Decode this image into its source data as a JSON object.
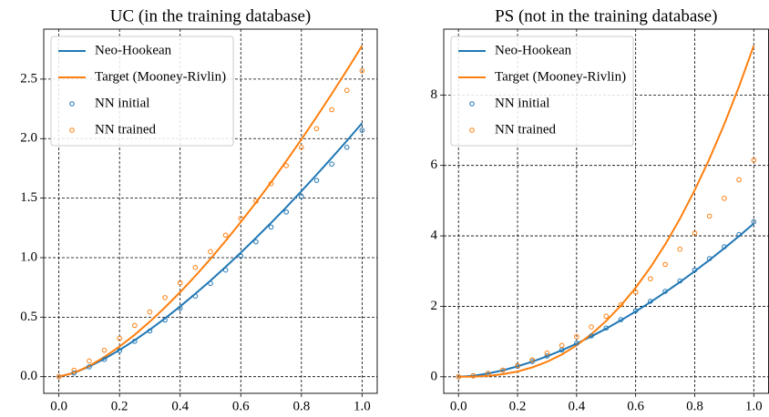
{
  "chart_data": [
    {
      "type": "line",
      "title": "UC (in the training database)",
      "x": [
        0,
        0.05,
        0.1,
        0.15,
        0.2,
        0.25,
        0.3,
        0.35,
        0.4,
        0.45,
        0.5,
        0.55,
        0.6,
        0.65,
        0.7,
        0.75,
        0.8,
        0.85,
        0.9,
        0.95,
        1
      ],
      "series": [
        {
          "name": "Neo-Hookean",
          "color": "#1f77b4",
          "style": "line",
          "values": [
            0,
            0.032,
            0.085,
            0.15,
            0.224,
            0.306,
            0.395,
            0.49,
            0.59,
            0.697,
            0.807,
            0.922,
            1.042,
            1.166,
            1.293,
            1.423,
            1.559,
            1.697,
            1.838,
            1.982,
            2.13
          ]
        },
        {
          "name": "Target (Mooney-Rivlin)",
          "color": "#ff7f0e",
          "style": "line",
          "values": [
            0,
            0.032,
            0.09,
            0.165,
            0.253,
            0.352,
            0.462,
            0.582,
            0.71,
            0.846,
            0.99,
            1.141,
            1.299,
            1.463,
            1.634,
            1.811,
            1.994,
            2.182,
            2.376,
            2.575,
            2.78
          ]
        },
        {
          "name": "NN initial",
          "color": "#1f77b4",
          "style": "markers",
          "values": [
            0,
            0.031,
            0.082,
            0.145,
            0.218,
            0.297,
            0.384,
            0.476,
            0.574,
            0.677,
            0.784,
            0.896,
            1.013,
            1.133,
            1.257,
            1.383,
            1.515,
            1.649,
            1.786,
            1.927,
            2.07
          ]
        },
        {
          "name": "NN trained",
          "color": "#ff7f0e",
          "style": "markers",
          "values": [
            0,
            0.054,
            0.132,
            0.222,
            0.322,
            0.43,
            0.544,
            0.664,
            0.788,
            0.917,
            1.051,
            1.189,
            1.33,
            1.474,
            1.622,
            1.773,
            1.927,
            2.084,
            2.243,
            2.405,
            2.57
          ]
        }
      ],
      "xlim": [
        -0.05,
        1.05
      ],
      "xticks": [
        {
          "value": 0,
          "label": "0.0"
        },
        0.2,
        0.4,
        0.6,
        0.8,
        {
          "value": 1,
          "label": "1.0"
        }
      ],
      "ylim": [
        -0.14,
        2.92
      ],
      "yticks": [
        {
          "value": 0,
          "label": "0.0"
        },
        0.5,
        {
          "value": 1,
          "label": "1.0"
        },
        1.5,
        {
          "value": 2,
          "label": "2.0"
        },
        2.5
      ],
      "grid": true,
      "legend": "upper left"
    },
    {
      "type": "line",
      "title": "PS (not in the training database)",
      "x": [
        0,
        0.05,
        0.1,
        0.15,
        0.2,
        0.25,
        0.3,
        0.35,
        0.4,
        0.45,
        0.5,
        0.55,
        0.6,
        0.65,
        0.7,
        0.75,
        0.8,
        0.85,
        0.9,
        0.95,
        1
      ],
      "series": [
        {
          "name": "Neo-Hookean",
          "color": "#1f77b4",
          "style": "line",
          "values": [
            0,
            0.029,
            0.093,
            0.183,
            0.296,
            0.43,
            0.582,
            0.753,
            0.942,
            1.147,
            1.367,
            1.603,
            1.854,
            2.119,
            2.398,
            2.69,
            2.997,
            3.316,
            3.648,
            3.993,
            4.35
          ]
        },
        {
          "name": "Target (Mooney-Rivlin)",
          "color": "#ff7f0e",
          "style": "line",
          "values": [
            0,
            0.004,
            0.025,
            0.072,
            0.15,
            0.267,
            0.426,
            0.633,
            0.892,
            1.208,
            1.583,
            2.023,
            2.529,
            3.107,
            3.758,
            4.488,
            5.298,
            6.191,
            7.169,
            8.239,
            9.4
          ]
        },
        {
          "name": "NN initial",
          "color": "#1f77b4",
          "style": "markers",
          "values": [
            0,
            0.03,
            0.094,
            0.185,
            0.299,
            0.435,
            0.589,
            0.762,
            0.953,
            1.16,
            1.383,
            1.621,
            1.875,
            2.143,
            2.425,
            2.721,
            3.032,
            3.354,
            3.69,
            4.039,
            4.4
          ]
        },
        {
          "name": "NN trained",
          "color": "#ff7f0e",
          "style": "markers",
          "values": [
            0,
            0.025,
            0.089,
            0.188,
            0.319,
            0.48,
            0.671,
            0.891,
            1.14,
            1.415,
            1.718,
            2.047,
            2.402,
            2.783,
            3.191,
            3.622,
            4.079,
            4.561,
            5.066,
            5.596,
            6.15
          ]
        }
      ],
      "xlim": [
        -0.05,
        1.05
      ],
      "xticks": [
        {
          "value": 0,
          "label": "0.0"
        },
        0.2,
        0.4,
        0.6,
        0.8,
        {
          "value": 1,
          "label": "1.0"
        }
      ],
      "ylim": [
        -0.47,
        9.87
      ],
      "yticks": [
        0,
        2,
        4,
        6,
        8
      ],
      "grid": true,
      "legend": "upper left"
    }
  ]
}
